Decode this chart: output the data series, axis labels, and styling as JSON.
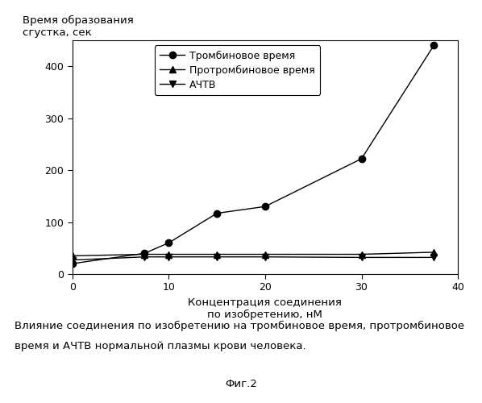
{
  "x": [
    0,
    7.5,
    10,
    15,
    20,
    30,
    37.5
  ],
  "thrombin_time": [
    20,
    40,
    60,
    117,
    130,
    222,
    440
  ],
  "prothrombin_time": [
    35,
    38,
    38,
    38,
    38,
    38,
    42
  ],
  "aptt": [
    27,
    33,
    33,
    33,
    33,
    32,
    32
  ],
  "xlabel_line1": "Концентрация соединения",
  "xlabel_line2": "по изобретению, нМ",
  "ylabel_line1": "Время образования",
  "ylabel_line2": "сгустка, сек",
  "legend1": "Тромбиновое время",
  "legend2": "Протромбиновое время",
  "legend3": "АЧТВ",
  "caption_line1": "Влияние соединения по изобретению на тромбиновое время, протромбиновое",
  "caption_line2": "время и АЧТВ нормальной плазмы крови человека.",
  "fig_label": "Фиг.2",
  "xlim": [
    0,
    40
  ],
  "ylim": [
    0,
    450
  ],
  "yticks": [
    0,
    100,
    200,
    300,
    400
  ],
  "xticks": [
    0,
    10,
    20,
    30,
    40
  ],
  "line_color": "#000000",
  "bg_color": "#ffffff"
}
